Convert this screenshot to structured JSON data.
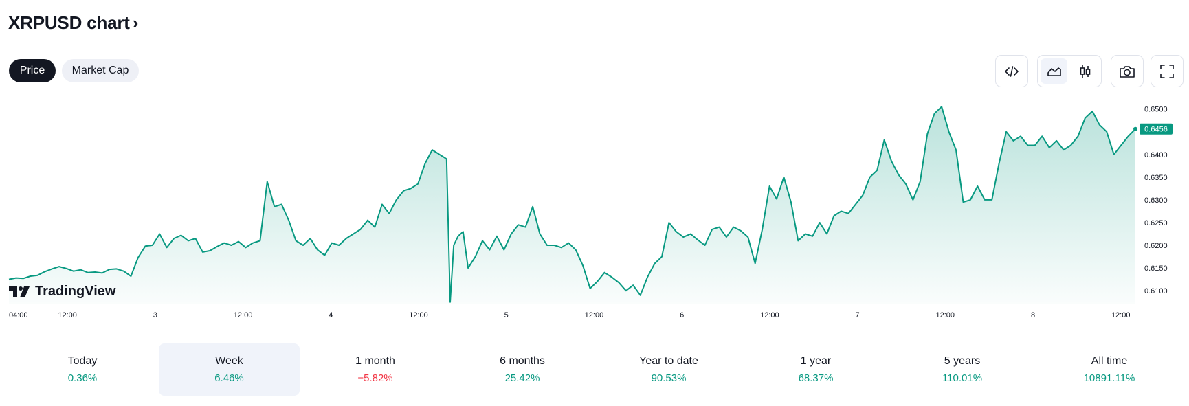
{
  "header": {
    "title": "XRPUSD chart",
    "chevron": "›"
  },
  "tabs": [
    {
      "label": "Price",
      "active": true
    },
    {
      "label": "Market Cap",
      "active": false
    }
  ],
  "toolbar": {
    "icons": [
      "embed-code-icon",
      "area-chart-icon",
      "candlestick-icon",
      "camera-icon",
      "fullscreen-icon"
    ],
    "active_style": "area"
  },
  "logo": {
    "text": "TradingView"
  },
  "chart_data": {
    "type": "area",
    "symbol": "XRPUSD",
    "color": "#089981",
    "fill_color": "#089981",
    "ylim": [
      0.607,
      0.651
    ],
    "y_ticks": [
      "0.6500",
      "0.6450",
      "0.6400",
      "0.6350",
      "0.6300",
      "0.6250",
      "0.6200",
      "0.6150",
      "0.6100"
    ],
    "last_price": "0.6456",
    "x_ticks": [
      "04:00",
      "12:00",
      "3",
      "12:00",
      "4",
      "12:00",
      "5",
      "12:00",
      "6",
      "12:00",
      "7",
      "12:00",
      "8",
      "12:00"
    ],
    "x_tick_hours": [
      0,
      8,
      20,
      32,
      44,
      56,
      68,
      80,
      92,
      104,
      116,
      128,
      140,
      152
    ],
    "x_range_hours": [
      0,
      154
    ],
    "points": [
      [
        0,
        0.6125
      ],
      [
        1,
        0.6128
      ],
      [
        2,
        0.6127
      ],
      [
        3,
        0.6132
      ],
      [
        4,
        0.6134
      ],
      [
        5,
        0.6142
      ],
      [
        6,
        0.6148
      ],
      [
        7,
        0.6153
      ],
      [
        8,
        0.6149
      ],
      [
        9,
        0.6143
      ],
      [
        10,
        0.6146
      ],
      [
        11,
        0.614
      ],
      [
        12,
        0.6141
      ],
      [
        13,
        0.6139
      ],
      [
        14,
        0.6147
      ],
      [
        15,
        0.6148
      ],
      [
        16,
        0.6143
      ],
      [
        17,
        0.6132
      ],
      [
        18,
        0.6173
      ],
      [
        19,
        0.6198
      ],
      [
        20,
        0.62
      ],
      [
        21,
        0.6225
      ],
      [
        22,
        0.6195
      ],
      [
        23,
        0.6215
      ],
      [
        24,
        0.6222
      ],
      [
        25,
        0.621
      ],
      [
        26,
        0.6215
      ],
      [
        27,
        0.6185
      ],
      [
        28,
        0.6188
      ],
      [
        29,
        0.6197
      ],
      [
        30,
        0.6205
      ],
      [
        31,
        0.62
      ],
      [
        32,
        0.6208
      ],
      [
        33,
        0.6195
      ],
      [
        34,
        0.6205
      ],
      [
        35,
        0.621
      ],
      [
        36,
        0.634
      ],
      [
        37,
        0.6285
      ],
      [
        38,
        0.629
      ],
      [
        39,
        0.6255
      ],
      [
        40,
        0.621
      ],
      [
        41,
        0.62
      ],
      [
        42,
        0.6215
      ],
      [
        43,
        0.619
      ],
      [
        44,
        0.6178
      ],
      [
        45,
        0.6205
      ],
      [
        46,
        0.62
      ],
      [
        47,
        0.6215
      ],
      [
        48,
        0.6225
      ],
      [
        49,
        0.6235
      ],
      [
        50,
        0.6255
      ],
      [
        51,
        0.624
      ],
      [
        52,
        0.629
      ],
      [
        53,
        0.627
      ],
      [
        54,
        0.63
      ],
      [
        55,
        0.632
      ],
      [
        56,
        0.6325
      ],
      [
        57,
        0.6335
      ],
      [
        58,
        0.638
      ],
      [
        59,
        0.641
      ],
      [
        60,
        0.64
      ],
      [
        61,
        0.639
      ],
      [
        61.5,
        0.6075
      ],
      [
        62,
        0.62
      ],
      [
        62.6,
        0.622
      ],
      [
        63.3,
        0.623
      ],
      [
        64,
        0.615
      ],
      [
        65,
        0.6175
      ],
      [
        66,
        0.621
      ],
      [
        67,
        0.619
      ],
      [
        68,
        0.622
      ],
      [
        69,
        0.619
      ],
      [
        70,
        0.6225
      ],
      [
        71,
        0.6245
      ],
      [
        72,
        0.624
      ],
      [
        73,
        0.6285
      ],
      [
        74,
        0.6225
      ],
      [
        75,
        0.62
      ],
      [
        76,
        0.62
      ],
      [
        77,
        0.6195
      ],
      [
        78,
        0.6205
      ],
      [
        79,
        0.619
      ],
      [
        80,
        0.6155
      ],
      [
        81,
        0.6105
      ],
      [
        82,
        0.612
      ],
      [
        83,
        0.614
      ],
      [
        84,
        0.613
      ],
      [
        85,
        0.6118
      ],
      [
        86,
        0.61
      ],
      [
        87,
        0.6112
      ],
      [
        88,
        0.609
      ],
      [
        89,
        0.613
      ],
      [
        90,
        0.616
      ],
      [
        91,
        0.6175
      ],
      [
        92,
        0.625
      ],
      [
        93,
        0.623
      ],
      [
        94,
        0.6218
      ],
      [
        95,
        0.6225
      ],
      [
        96,
        0.6212
      ],
      [
        97,
        0.62
      ],
      [
        98,
        0.6235
      ],
      [
        99,
        0.624
      ],
      [
        100,
        0.6218
      ],
      [
        101,
        0.624
      ],
      [
        102,
        0.6232
      ],
      [
        103,
        0.6218
      ],
      [
        104,
        0.616
      ],
      [
        105,
        0.6235
      ],
      [
        106,
        0.633
      ],
      [
        107,
        0.6302
      ],
      [
        108,
        0.635
      ],
      [
        109,
        0.6295
      ],
      [
        110,
        0.621
      ],
      [
        111,
        0.6225
      ],
      [
        112,
        0.622
      ],
      [
        113,
        0.625
      ],
      [
        114,
        0.6225
      ],
      [
        115,
        0.6265
      ],
      [
        116,
        0.6275
      ],
      [
        117,
        0.627
      ],
      [
        118,
        0.629
      ],
      [
        119,
        0.631
      ],
      [
        120,
        0.635
      ],
      [
        121,
        0.6365
      ],
      [
        122,
        0.6432
      ],
      [
        123,
        0.6385
      ],
      [
        124,
        0.6355
      ],
      [
        125,
        0.6335
      ],
      [
        126,
        0.63
      ],
      [
        127,
        0.634
      ],
      [
        128,
        0.6445
      ],
      [
        129,
        0.649
      ],
      [
        130,
        0.6505
      ],
      [
        131,
        0.645
      ],
      [
        132,
        0.641
      ],
      [
        133,
        0.6295
      ],
      [
        134,
        0.63
      ],
      [
        135,
        0.633
      ],
      [
        136,
        0.63
      ],
      [
        137,
        0.63
      ],
      [
        138,
        0.638
      ],
      [
        139,
        0.645
      ],
      [
        140,
        0.643
      ],
      [
        141,
        0.644
      ],
      [
        142,
        0.642
      ],
      [
        143,
        0.642
      ],
      [
        144,
        0.644
      ],
      [
        145,
        0.6415
      ],
      [
        146,
        0.643
      ],
      [
        147,
        0.641
      ],
      [
        148,
        0.642
      ],
      [
        149,
        0.644
      ],
      [
        150,
        0.648
      ],
      [
        151,
        0.6495
      ],
      [
        152,
        0.6465
      ],
      [
        153,
        0.645
      ],
      [
        154,
        0.64
      ],
      [
        155,
        0.642
      ],
      [
        156,
        0.644
      ],
      [
        157,
        0.6456
      ]
    ]
  },
  "periods": [
    {
      "label": "Today",
      "value": "0.36%",
      "trend": "pos",
      "active": false
    },
    {
      "label": "Week",
      "value": "6.46%",
      "trend": "pos",
      "active": true
    },
    {
      "label": "1 month",
      "value": "−5.82%",
      "trend": "neg",
      "active": false
    },
    {
      "label": "6 months",
      "value": "25.42%",
      "trend": "pos",
      "active": false
    },
    {
      "label": "Year to date",
      "value": "90.53%",
      "trend": "pos",
      "active": false
    },
    {
      "label": "1 year",
      "value": "68.37%",
      "trend": "pos",
      "active": false
    },
    {
      "label": "5 years",
      "value": "110.01%",
      "trend": "pos",
      "active": false
    },
    {
      "label": "All time",
      "value": "10891.11%",
      "trend": "pos",
      "active": false
    }
  ]
}
